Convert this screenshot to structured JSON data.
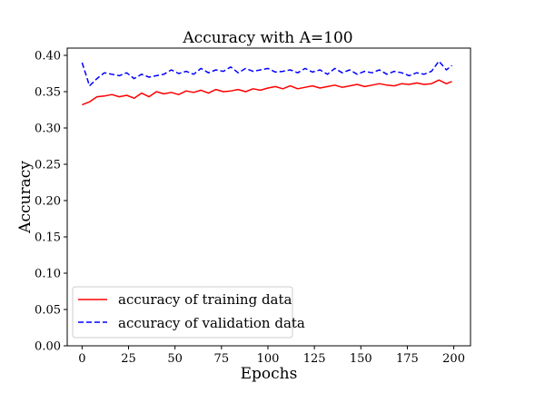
{
  "chart_data": {
    "type": "line",
    "title": "Accuracy with A=100",
    "xlabel": "Epochs",
    "ylabel": "Accuracy",
    "xlim": [
      -8,
      209
    ],
    "ylim": [
      0.0,
      0.41
    ],
    "xticks": [
      0,
      25,
      50,
      75,
      100,
      125,
      150,
      175,
      200
    ],
    "yticks": [
      0.0,
      0.05,
      0.1,
      0.15,
      0.2,
      0.25,
      0.3,
      0.35,
      0.4
    ],
    "ytick_labels": [
      "0.00",
      "0.05",
      "0.10",
      "0.15",
      "0.20",
      "0.25",
      "0.30",
      "0.35",
      "0.40"
    ],
    "grid": false,
    "legend_position": "lower-left",
    "x": [
      0,
      4,
      8,
      12,
      16,
      20,
      24,
      28,
      32,
      36,
      40,
      44,
      48,
      52,
      56,
      60,
      64,
      68,
      72,
      76,
      80,
      84,
      88,
      92,
      96,
      100,
      104,
      108,
      112,
      116,
      120,
      124,
      128,
      132,
      136,
      140,
      144,
      148,
      152,
      156,
      160,
      164,
      168,
      172,
      176,
      180,
      184,
      188,
      192,
      196,
      199
    ],
    "series": [
      {
        "name": "accuracy of training data",
        "color": "#ff0000",
        "style": "solid",
        "values": [
          0.332,
          0.336,
          0.343,
          0.344,
          0.346,
          0.343,
          0.345,
          0.341,
          0.348,
          0.343,
          0.35,
          0.347,
          0.349,
          0.346,
          0.351,
          0.349,
          0.352,
          0.348,
          0.353,
          0.35,
          0.351,
          0.353,
          0.35,
          0.354,
          0.352,
          0.355,
          0.357,
          0.354,
          0.358,
          0.354,
          0.356,
          0.358,
          0.355,
          0.357,
          0.359,
          0.356,
          0.358,
          0.36,
          0.357,
          0.359,
          0.361,
          0.359,
          0.358,
          0.361,
          0.36,
          0.362,
          0.36,
          0.361,
          0.366,
          0.361,
          0.364
        ]
      },
      {
        "name": "accuracy of validation data",
        "color": "#0000ff",
        "style": "dashed",
        "values": [
          0.39,
          0.358,
          0.368,
          0.376,
          0.374,
          0.372,
          0.376,
          0.368,
          0.374,
          0.37,
          0.372,
          0.374,
          0.38,
          0.375,
          0.378,
          0.374,
          0.382,
          0.376,
          0.38,
          0.378,
          0.384,
          0.376,
          0.382,
          0.378,
          0.38,
          0.382,
          0.377,
          0.378,
          0.38,
          0.376,
          0.382,
          0.377,
          0.38,
          0.374,
          0.382,
          0.376,
          0.38,
          0.374,
          0.378,
          0.376,
          0.38,
          0.374,
          0.378,
          0.376,
          0.372,
          0.376,
          0.374,
          0.378,
          0.392,
          0.38,
          0.386
        ]
      }
    ]
  }
}
